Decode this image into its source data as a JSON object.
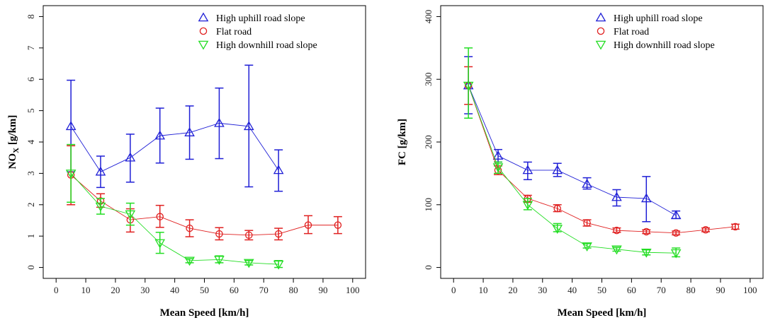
{
  "chart_data": [
    {
      "type": "line",
      "xlabel": "Mean Speed [km/h]",
      "ylabel": "NO",
      "ylabel_sub": "X",
      "ylabel_unit": " [g/km]",
      "xlim": [
        0,
        100
      ],
      "ylim": [
        0,
        8
      ],
      "xticks": [
        0,
        10,
        20,
        30,
        40,
        50,
        60,
        70,
        80,
        90,
        100
      ],
      "yticks": [
        0,
        1,
        2,
        3,
        4,
        5,
        6,
        7,
        8
      ],
      "legend_position": "top-right",
      "series": [
        {
          "name": "High uphill road slope",
          "color": "#1f1fd6",
          "marker": "triangle-up",
          "x": [
            5,
            15,
            25,
            35,
            45,
            55,
            65,
            75
          ],
          "y": [
            4.5,
            3.05,
            3.5,
            4.2,
            4.3,
            4.6,
            4.5,
            3.1
          ],
          "err_low": [
            3.05,
            2.55,
            2.72,
            3.33,
            3.45,
            3.47,
            2.57,
            2.43
          ],
          "err_high": [
            5.97,
            3.55,
            4.25,
            5.08,
            5.15,
            5.72,
            6.45,
            3.75
          ]
        },
        {
          "name": "Flat road",
          "color": "#e02020",
          "marker": "circle",
          "x": [
            5,
            15,
            25,
            35,
            45,
            55,
            65,
            75,
            85,
            95
          ],
          "y": [
            2.95,
            2.12,
            1.52,
            1.62,
            1.25,
            1.07,
            1.03,
            1.07,
            1.35,
            1.35
          ],
          "err_low": [
            2.0,
            1.92,
            1.13,
            1.28,
            0.98,
            0.88,
            0.88,
            0.88,
            1.08,
            1.08
          ],
          "err_high": [
            3.88,
            2.35,
            1.87,
            1.98,
            1.52,
            1.27,
            1.18,
            1.25,
            1.65,
            1.62
          ]
        },
        {
          "name": "High downhill road slope",
          "color": "#22dd22",
          "marker": "triangle-down",
          "x": [
            5,
            15,
            25,
            35,
            45,
            55,
            65,
            75
          ],
          "y": [
            3.0,
            1.95,
            1.7,
            0.78,
            0.22,
            0.25,
            0.15,
            0.1
          ],
          "err_low": [
            2.08,
            1.7,
            1.35,
            0.45,
            0.15,
            0.15,
            0.08,
            0.0
          ],
          "err_high": [
            3.92,
            2.2,
            2.05,
            1.12,
            0.28,
            0.37,
            0.22,
            0.22
          ]
        }
      ]
    },
    {
      "type": "line",
      "xlabel": "Mean Speed [km/h]",
      "ylabel": "FC",
      "ylabel_sub": "",
      "ylabel_unit": " [g/km]",
      "xlim": [
        0,
        100
      ],
      "ylim": [
        0,
        400
      ],
      "xticks": [
        0,
        10,
        20,
        30,
        40,
        50,
        60,
        70,
        80,
        90,
        100
      ],
      "yticks": [
        0,
        100,
        200,
        300,
        400
      ],
      "legend_position": "top-right",
      "series": [
        {
          "name": "High uphill road slope",
          "color": "#1f1fd6",
          "marker": "triangle-up",
          "x": [
            5,
            15,
            25,
            35,
            45,
            55,
            65,
            75
          ],
          "y": [
            290,
            178,
            155,
            155,
            133,
            112,
            110,
            83
          ],
          "err_low": [
            245,
            168,
            140,
            145,
            125,
            98,
            73,
            78
          ],
          "err_high": [
            336,
            188,
            168,
            166,
            143,
            124,
            145,
            90
          ]
        },
        {
          "name": "Flat road",
          "color": "#e02020",
          "marker": "circle",
          "x": [
            5,
            15,
            25,
            35,
            45,
            55,
            65,
            75,
            85,
            95
          ],
          "y": [
            290,
            155,
            110,
            94,
            71,
            59,
            57,
            55,
            60,
            65
          ],
          "err_low": [
            260,
            148,
            104,
            89,
            66,
            56,
            54,
            52,
            57,
            61
          ],
          "err_high": [
            320,
            162,
            115,
            100,
            76,
            63,
            60,
            58,
            63,
            69
          ]
        },
        {
          "name": "High downhill road slope",
          "color": "#22dd22",
          "marker": "triangle-down",
          "x": [
            5,
            15,
            25,
            35,
            45,
            55,
            65,
            75
          ],
          "y": [
            290,
            160,
            100,
            62,
            34,
            29,
            24,
            23
          ],
          "err_low": [
            238,
            150,
            92,
            57,
            31,
            26,
            20,
            17
          ],
          "err_high": [
            350,
            168,
            110,
            70,
            38,
            32,
            28,
            31
          ]
        }
      ]
    }
  ]
}
